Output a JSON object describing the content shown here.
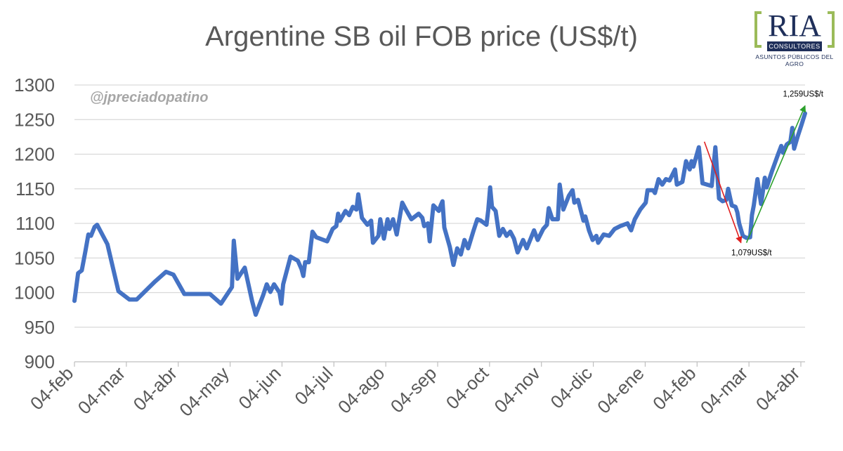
{
  "chart_data": {
    "type": "line",
    "title": "Argentine SB oil FOB price (US$/t)",
    "xlabel": "",
    "ylabel": "",
    "ylim": [
      900,
      1300
    ],
    "yticks": [
      900,
      950,
      1000,
      1050,
      1100,
      1150,
      1200,
      1250,
      1300
    ],
    "xtick_labels": [
      "04-feb",
      "04-mar",
      "04-abr",
      "04-may",
      "04-jun",
      "04-jul",
      "04-ago",
      "04-sep",
      "04-oct",
      "04-nov",
      "04-dic",
      "04-ene",
      "04-feb",
      "04-mar",
      "04-abr"
    ],
    "grid": true,
    "legend": "none",
    "line_color": "#4472c4",
    "series": [
      {
        "values": [
          [
            0,
            988
          ],
          [
            1,
            1028
          ],
          [
            2,
            1032
          ],
          [
            3,
            1060
          ],
          [
            3.8,
            1084
          ],
          [
            4.5,
            1082
          ],
          [
            5.5,
            1095
          ],
          [
            6.2,
            1098
          ],
          [
            9,
            1070
          ],
          [
            12,
            1002
          ],
          [
            15,
            990
          ],
          [
            17,
            990
          ],
          [
            22,
            1016
          ],
          [
            25,
            1030
          ],
          [
            27,
            1026
          ],
          [
            30,
            998
          ],
          [
            37,
            998
          ],
          [
            40,
            984
          ],
          [
            43,
            1008
          ],
          [
            43.5,
            1075
          ],
          [
            44.5,
            1020
          ],
          [
            46.5,
            1036
          ],
          [
            48.5,
            988
          ],
          [
            49.5,
            968
          ],
          [
            51.5,
            996
          ],
          [
            52.5,
            1012
          ],
          [
            53.5,
            1001
          ],
          [
            54.5,
            1012
          ],
          [
            56,
            1000
          ],
          [
            56.5,
            984
          ],
          [
            57,
            1012
          ],
          [
            59,
            1052
          ],
          [
            61,
            1046
          ],
          [
            62,
            1034
          ],
          [
            62.5,
            1024
          ],
          [
            63,
            1044
          ],
          [
            64,
            1044
          ],
          [
            65,
            1088
          ],
          [
            66,
            1080
          ],
          [
            69,
            1074
          ],
          [
            70.5,
            1092
          ],
          [
            71.5,
            1096
          ],
          [
            72,
            1114
          ],
          [
            72.5,
            1104
          ],
          [
            74,
            1118
          ],
          [
            75,
            1112
          ],
          [
            76,
            1124
          ],
          [
            77,
            1120
          ],
          [
            77.5,
            1142
          ],
          [
            78.5,
            1108
          ],
          [
            80,
            1098
          ],
          [
            81,
            1104
          ],
          [
            81.5,
            1072
          ],
          [
            83,
            1082
          ],
          [
            83.5,
            1106
          ],
          [
            84.5,
            1078
          ],
          [
            85.5,
            1106
          ],
          [
            86,
            1092
          ],
          [
            87,
            1106
          ],
          [
            88,
            1084
          ],
          [
            89.5,
            1130
          ],
          [
            90.5,
            1120
          ],
          [
            92,
            1106
          ],
          [
            94,
            1114
          ],
          [
            95,
            1108
          ],
          [
            95.5,
            1096
          ],
          [
            96.5,
            1100
          ],
          [
            97,
            1074
          ],
          [
            98,
            1126
          ],
          [
            99.5,
            1118
          ],
          [
            100,
            1126
          ],
          [
            100.5,
            1132
          ],
          [
            101,
            1094
          ],
          [
            102.5,
            1066
          ],
          [
            103.5,
            1040
          ],
          [
            104.5,
            1064
          ],
          [
            105.5,
            1055
          ],
          [
            106.5,
            1076
          ],
          [
            107.5,
            1064
          ],
          [
            109,
            1090
          ],
          [
            110,
            1106
          ],
          [
            111,
            1104
          ],
          [
            112.5,
            1098
          ],
          [
            113,
            1120
          ],
          [
            113.5,
            1152
          ],
          [
            114,
            1124
          ],
          [
            115,
            1118
          ],
          [
            116,
            1082
          ],
          [
            117,
            1092
          ],
          [
            118,
            1082
          ],
          [
            119,
            1088
          ],
          [
            120,
            1078
          ],
          [
            121,
            1058
          ],
          [
            122.5,
            1076
          ],
          [
            123.5,
            1064
          ],
          [
            125.5,
            1090
          ],
          [
            126.5,
            1076
          ],
          [
            128,
            1092
          ],
          [
            129,
            1098
          ],
          [
            129.5,
            1122
          ],
          [
            130.5,
            1106
          ],
          [
            132,
            1106
          ],
          [
            132.5,
            1156
          ],
          [
            133.5,
            1120
          ],
          [
            135,
            1140
          ],
          [
            136,
            1148
          ],
          [
            136.5,
            1130
          ],
          [
            137.5,
            1134
          ],
          [
            139,
            1104
          ],
          [
            139.5,
            1110
          ],
          [
            140.5,
            1090
          ],
          [
            141.5,
            1076
          ],
          [
            142.5,
            1082
          ],
          [
            143,
            1072
          ],
          [
            144.5,
            1084
          ],
          [
            146,
            1082
          ],
          [
            147.5,
            1092
          ],
          [
            149,
            1096
          ],
          [
            151,
            1100
          ],
          [
            152,
            1090
          ],
          [
            153,
            1106
          ],
          [
            154.5,
            1120
          ],
          [
            156,
            1130
          ],
          [
            156.5,
            1148
          ],
          [
            158,
            1148
          ],
          [
            158.5,
            1144
          ],
          [
            159.5,
            1164
          ],
          [
            160.5,
            1156
          ],
          [
            161.5,
            1164
          ],
          [
            162.5,
            1162
          ],
          [
            164,
            1178
          ],
          [
            164.5,
            1156
          ],
          [
            166,
            1160
          ],
          [
            167,
            1190
          ],
          [
            168,
            1178
          ],
          [
            168.5,
            1190
          ],
          [
            169,
            1182
          ],
          [
            170.5,
            1210
          ],
          [
            171.5,
            1158
          ],
          [
            174,
            1154
          ],
          [
            175,
            1210
          ],
          [
            176,
            1136
          ],
          [
            177,
            1132
          ],
          [
            178,
            1134
          ],
          [
            178.5,
            1150
          ],
          [
            179.5,
            1126
          ],
          [
            180.5,
            1124
          ],
          [
            181,
            1116
          ],
          [
            181.5,
            1100
          ],
          [
            182.5,
            1082
          ],
          [
            183.5,
            1079
          ],
          [
            184.5,
            1080
          ],
          [
            185,
            1112
          ],
          [
            185.5,
            1126
          ],
          [
            186.5,
            1164
          ],
          [
            187.5,
            1128
          ],
          [
            188.5,
            1166
          ],
          [
            189,
            1152
          ],
          [
            190.5,
            1176
          ],
          [
            192,
            1198
          ],
          [
            193,
            1212
          ],
          [
            193.5,
            1202
          ],
          [
            194.5,
            1214
          ],
          [
            195.5,
            1218
          ],
          [
            196,
            1238
          ],
          [
            196.5,
            1208
          ],
          [
            197.5,
            1226
          ],
          [
            198.5,
            1242
          ],
          [
            199.5,
            1259
          ]
        ]
      }
    ],
    "annotations": [
      {
        "text": "1,259US$/t",
        "x": 199.5,
        "y": 1259,
        "color": "#000000"
      },
      {
        "text": "1,079US$/t",
        "x": 183.5,
        "y": 1079,
        "color": "#000000"
      }
    ],
    "trend_arrows": [
      {
        "from": [
          172,
          1218
        ],
        "to": [
          182,
          1072
        ],
        "color": "#e02020"
      },
      {
        "from": [
          183.5,
          1072
        ],
        "to": [
          199.5,
          1270
        ],
        "color": "#2ca02c"
      }
    ]
  },
  "watermark": "@jpreciadopatino",
  "logo": {
    "word": "RIA",
    "tagline": "CONSULTORES",
    "subtitle": "ASUNTOS PÚBLICOS DEL AGRO"
  }
}
